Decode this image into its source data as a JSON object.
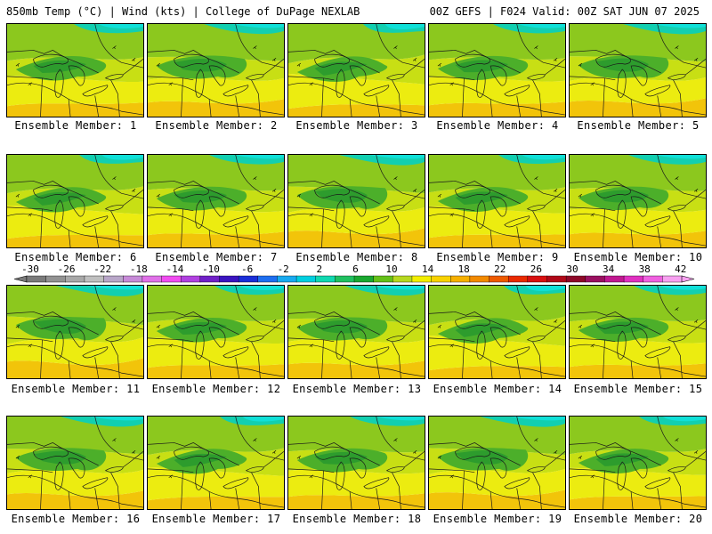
{
  "header": {
    "left": "850mb Temp (°C) | Wind (kts) | College of DuPage NEXLAB",
    "right": "00Z GEFS | F024 Valid: 00Z SAT JUN 07 2025"
  },
  "colorbar": {
    "ticks": [
      "-30",
      "-26",
      "-22",
      "-18",
      "-14",
      "-10",
      "-6",
      "-2",
      "2",
      "6",
      "10",
      "14",
      "18",
      "22",
      "26",
      "30",
      "34",
      "38",
      "42"
    ],
    "colors": [
      "#7a7a7a",
      "#929292",
      "#a8a8a8",
      "#bfbfbf",
      "#b8a6c8",
      "#c78ad8",
      "#e070e8",
      "#f04cf0",
      "#b040e0",
      "#7020c8",
      "#3a14c0",
      "#1a2ed8",
      "#1e6ef0",
      "#18aaf0",
      "#00cfe0",
      "#10d8b0",
      "#20c060",
      "#1aa830",
      "#64c018",
      "#b6d820",
      "#f2ee00",
      "#f8d200",
      "#f6b000",
      "#f28a00",
      "#ee5a00",
      "#ea2a00",
      "#d81010",
      "#b00818",
      "#8e0828",
      "#9a1060",
      "#c01890",
      "#e030c0",
      "#f060e0",
      "#f7a0f0"
    ]
  },
  "members": [
    {
      "label": "Ensemble Member: 1",
      "n": 1
    },
    {
      "label": "Ensemble Member: 2",
      "n": 2
    },
    {
      "label": "Ensemble Member: 3",
      "n": 3
    },
    {
      "label": "Ensemble Member: 4",
      "n": 4
    },
    {
      "label": "Ensemble Member: 5",
      "n": 5
    },
    {
      "label": "Ensemble Member: 6",
      "n": 6
    },
    {
      "label": "Ensemble Member: 7",
      "n": 7
    },
    {
      "label": "Ensemble Member: 8",
      "n": 8
    },
    {
      "label": "Ensemble Member: 9",
      "n": 9
    },
    {
      "label": "Ensemble Member: 10",
      "n": 10
    },
    {
      "label": "Ensemble Member: 11",
      "n": 11
    },
    {
      "label": "Ensemble Member: 12",
      "n": 12
    },
    {
      "label": "Ensemble Member: 13",
      "n": 13
    },
    {
      "label": "Ensemble Member: 14",
      "n": 14
    },
    {
      "label": "Ensemble Member: 15",
      "n": 15
    },
    {
      "label": "Ensemble Member: 16",
      "n": 16
    },
    {
      "label": "Ensemble Member: 17",
      "n": 17
    },
    {
      "label": "Ensemble Member: 18",
      "n": 18
    },
    {
      "label": "Ensemble Member: 19",
      "n": 19
    },
    {
      "label": "Ensemble Member: 20",
      "n": 20
    }
  ],
  "map_colors": {
    "dark_green": "#2d9c2d",
    "green": "#4caf2a",
    "light_green": "#8cc81e",
    "yellow_green": "#c8df14",
    "yellow": "#ecec10",
    "orange_yellow": "#f2c40a",
    "teal": "#12cfb0",
    "cyan": "#10e0d8"
  }
}
